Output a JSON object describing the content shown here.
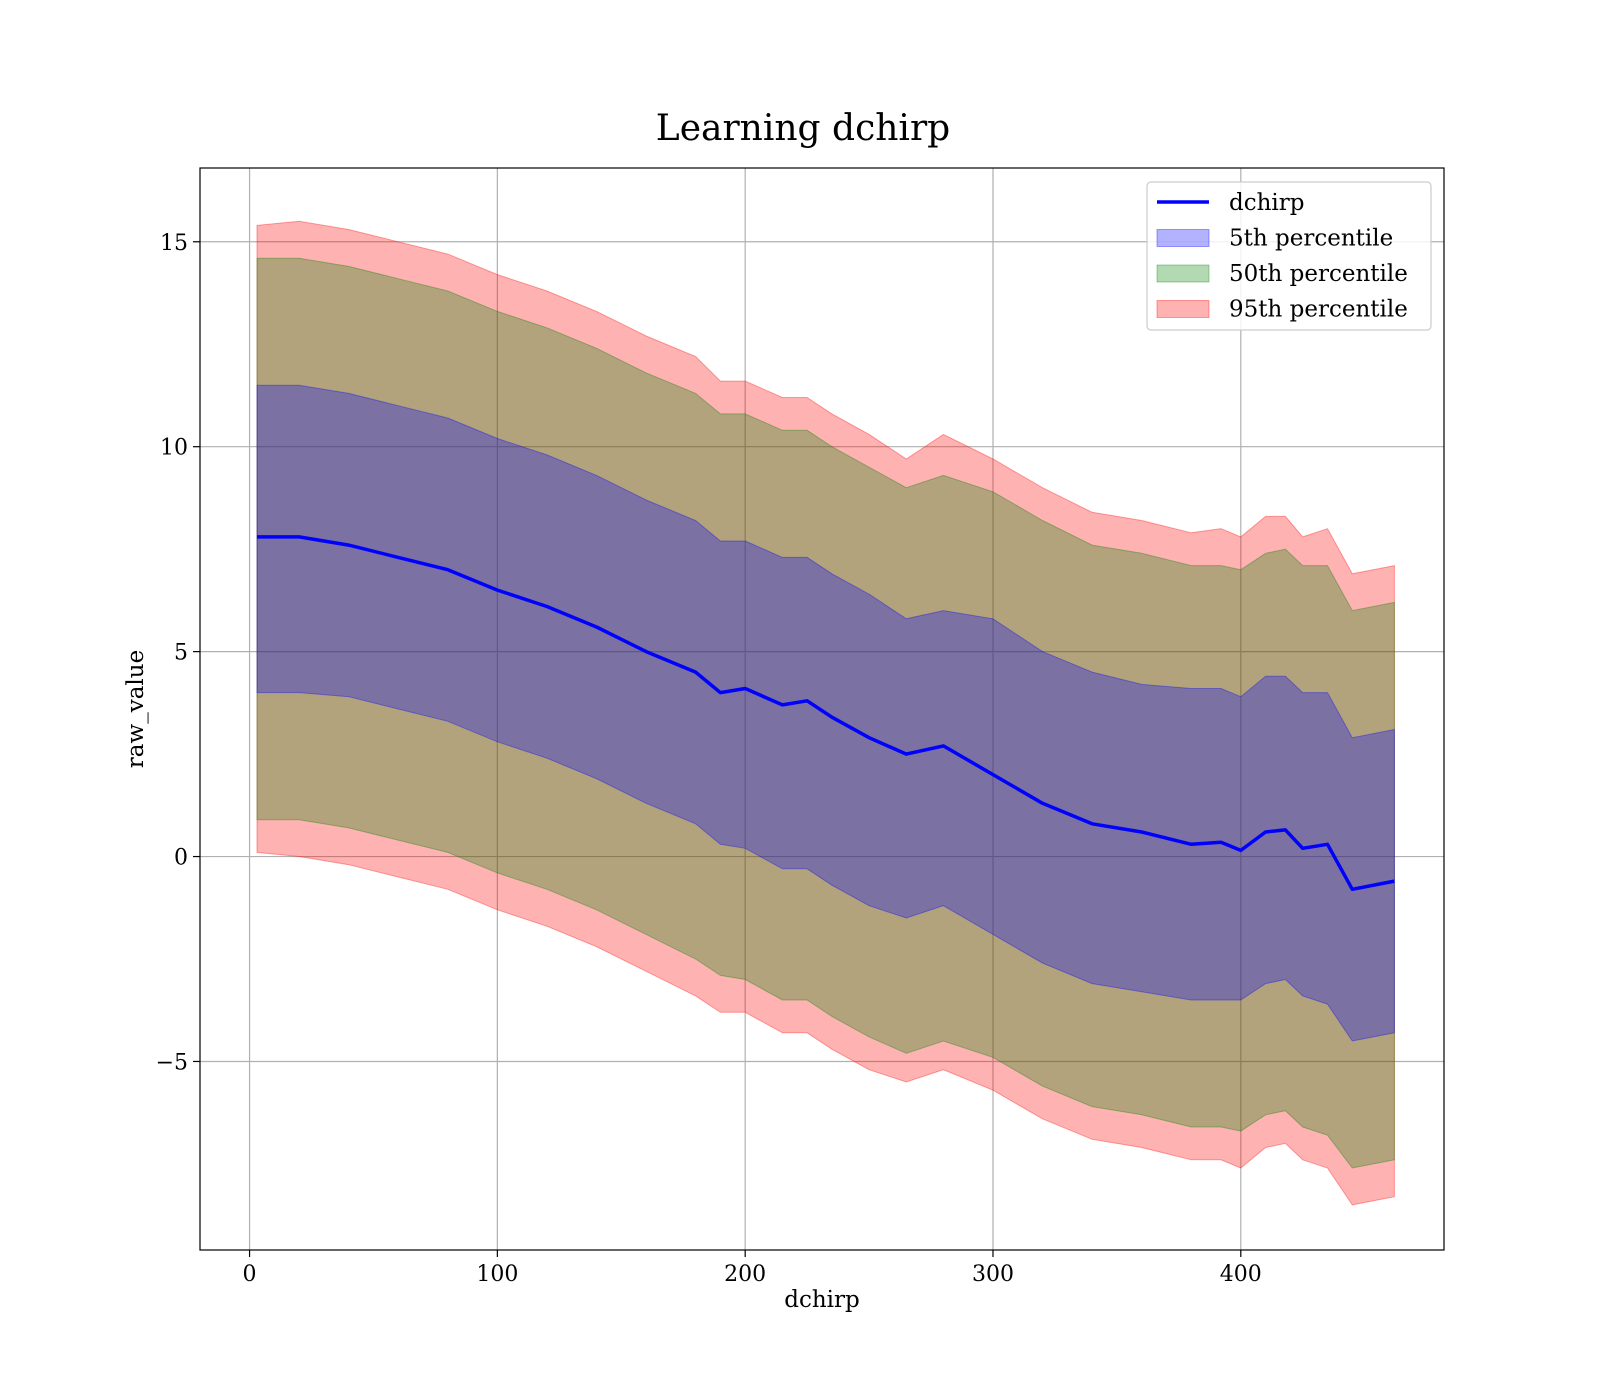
{
  "chart_data": {
    "type": "line",
    "title": "Learning dchirp",
    "xlabel": "dchirp",
    "ylabel": "raw_value",
    "xlim": [
      -20,
      482
    ],
    "ylim": [
      -9.6,
      16.8
    ],
    "xticks": [
      0,
      100,
      200,
      300,
      400
    ],
    "yticks": [
      -5,
      0,
      5,
      10,
      15
    ],
    "xtick_labels": [
      "0",
      "100",
      "200",
      "300",
      "400"
    ],
    "ytick_labels": [
      "−5",
      "0",
      "5",
      "10",
      "15"
    ],
    "grid": true,
    "legend_position": "top-right",
    "x": [
      3,
      20,
      40,
      60,
      80,
      100,
      120,
      140,
      160,
      180,
      190,
      200,
      215,
      225,
      235,
      250,
      265,
      280,
      300,
      320,
      340,
      360,
      380,
      392,
      400,
      410,
      418,
      425,
      435,
      445,
      462
    ],
    "series": [
      {
        "name": "dchirp",
        "kind": "line",
        "color": "#0000ff",
        "values": [
          7.8,
          7.8,
          7.6,
          7.3,
          7.0,
          6.5,
          6.1,
          5.6,
          5.0,
          4.5,
          4.0,
          4.1,
          3.7,
          3.8,
          3.4,
          2.9,
          2.5,
          2.7,
          2.0,
          1.3,
          0.8,
          0.6,
          0.3,
          0.35,
          0.15,
          0.6,
          0.65,
          0.2,
          0.3,
          -0.8,
          -0.6
        ]
      },
      {
        "name": "5th percentile",
        "kind": "band",
        "color": "#0000ff",
        "lower": [
          4.0,
          4.0,
          3.9,
          3.6,
          3.3,
          2.8,
          2.4,
          1.9,
          1.3,
          0.8,
          0.3,
          0.2,
          -0.3,
          -0.3,
          -0.7,
          -1.2,
          -1.5,
          -1.2,
          -1.9,
          -2.6,
          -3.1,
          -3.3,
          -3.5,
          -3.5,
          -3.5,
          -3.1,
          -3.0,
          -3.4,
          -3.6,
          -4.5,
          -4.3
        ],
        "upper": [
          11.5,
          11.5,
          11.3,
          11.0,
          10.7,
          10.2,
          9.8,
          9.3,
          8.7,
          8.2,
          7.7,
          7.7,
          7.3,
          7.3,
          6.9,
          6.4,
          5.8,
          6.0,
          5.8,
          5.0,
          4.5,
          4.2,
          4.1,
          4.1,
          3.9,
          4.4,
          4.4,
          4.0,
          4.0,
          2.9,
          3.1
        ]
      },
      {
        "name": "50th percentile",
        "kind": "band",
        "color": "#008000",
        "lower": [
          0.9,
          0.9,
          0.7,
          0.4,
          0.1,
          -0.4,
          -0.8,
          -1.3,
          -1.9,
          -2.5,
          -2.9,
          -3.0,
          -3.5,
          -3.5,
          -3.9,
          -4.4,
          -4.8,
          -4.5,
          -4.9,
          -5.6,
          -6.1,
          -6.3,
          -6.6,
          -6.6,
          -6.7,
          -6.3,
          -6.2,
          -6.6,
          -6.8,
          -7.6,
          -7.4
        ],
        "upper": [
          14.6,
          14.6,
          14.4,
          14.1,
          13.8,
          13.3,
          12.9,
          12.4,
          11.8,
          11.3,
          10.8,
          10.8,
          10.4,
          10.4,
          10.0,
          9.5,
          9.0,
          9.3,
          8.9,
          8.2,
          7.6,
          7.4,
          7.1,
          7.1,
          7.0,
          7.4,
          7.5,
          7.1,
          7.1,
          6.0,
          6.2
        ]
      },
      {
        "name": "95th percentile",
        "kind": "band",
        "color": "#ff0000",
        "lower": [
          0.1,
          0.0,
          -0.2,
          -0.5,
          -0.8,
          -1.3,
          -1.7,
          -2.2,
          -2.8,
          -3.4,
          -3.8,
          -3.8,
          -4.3,
          -4.3,
          -4.7,
          -5.2,
          -5.5,
          -5.2,
          -5.7,
          -6.4,
          -6.9,
          -7.1,
          -7.4,
          -7.4,
          -7.6,
          -7.1,
          -7.0,
          -7.4,
          -7.6,
          -8.5,
          -8.3
        ],
        "upper": [
          15.4,
          15.5,
          15.3,
          15.0,
          14.7,
          14.2,
          13.8,
          13.3,
          12.7,
          12.2,
          11.6,
          11.6,
          11.2,
          11.2,
          10.8,
          10.3,
          9.7,
          10.3,
          9.7,
          9.0,
          8.4,
          8.2,
          7.9,
          8.0,
          7.8,
          8.3,
          8.3,
          7.8,
          8.0,
          6.9,
          7.1
        ]
      }
    ]
  }
}
